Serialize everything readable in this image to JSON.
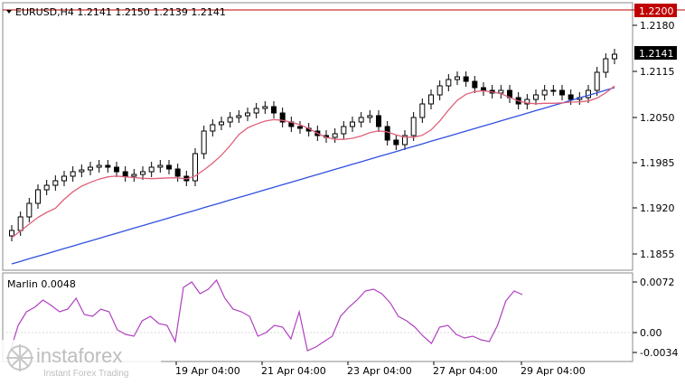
{
  "main_panel": {
    "header": "EURUSD,H4  1.2141 1.2150 1.2139 1.2141",
    "price_axis_labels": [
      "1.2180",
      "1.2115",
      "1.2050",
      "1.1985",
      "1.1920",
      "1.1855"
    ],
    "resistance_level": {
      "label": "1.2200",
      "color": "#c00000"
    },
    "current_price": {
      "label": "1.2141",
      "color": "#000000"
    },
    "ma_fast_color": "#e0607a",
    "ma_slow_color": "#3050e0"
  },
  "indicator_panel": {
    "title": "Marlin 0.0048",
    "axis_labels": [
      "0.0072",
      "0.00",
      "-0.0034"
    ],
    "line_color": "#b040c0"
  },
  "time_axis": {
    "labels": [
      "19 Apr 04:00",
      "21 Apr 04:00",
      "23 Apr 04:00",
      "27 Apr 04:00",
      "29 Apr 04:00"
    ]
  },
  "watermark": {
    "brand": "instaforex",
    "tagline": "Instant Forex Trading"
  }
}
